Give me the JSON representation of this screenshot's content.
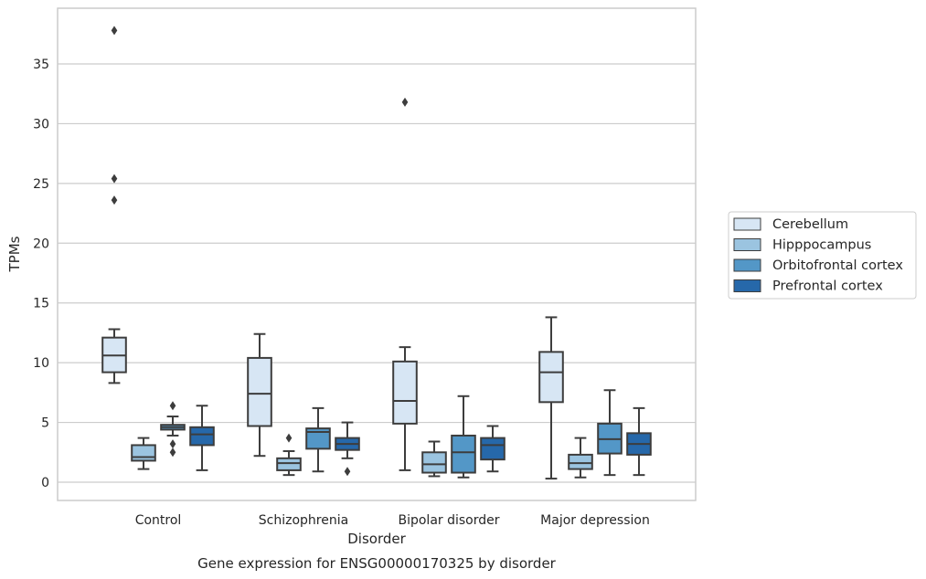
{
  "chart_data": {
    "type": "box",
    "title": "Gene expression for ENSG00000170325 by disorder",
    "xlabel": "Disorder",
    "ylabel": "TPMs",
    "ylim": [
      -1.5,
      39.5
    ],
    "yticks": [
      0,
      5,
      10,
      15,
      20,
      25,
      30,
      35
    ],
    "categories": [
      "Control",
      "Schizophrenia",
      "Bipolar disorder",
      "Major depression"
    ],
    "grid": true,
    "legend_position": "right",
    "series": [
      {
        "name": "Cerebellum",
        "color": "#d7e6f4",
        "boxes": [
          {
            "whislo": 8.3,
            "q1": 9.2,
            "med": 10.6,
            "q3": 12.1,
            "whishi": 12.8,
            "fliers": [
              37.8,
              25.4,
              23.6
            ]
          },
          {
            "whislo": 2.2,
            "q1": 4.7,
            "med": 7.4,
            "q3": 10.4,
            "whishi": 12.4,
            "fliers": []
          },
          {
            "whislo": 1.0,
            "q1": 4.9,
            "med": 6.8,
            "q3": 10.1,
            "whishi": 11.3,
            "fliers": [
              31.8
            ]
          },
          {
            "whislo": 0.3,
            "q1": 6.7,
            "med": 9.2,
            "q3": 10.9,
            "whishi": 13.8,
            "fliers": []
          }
        ]
      },
      {
        "name": "Hipppocampus",
        "color": "#9bc4e0",
        "boxes": [
          {
            "whislo": 1.1,
            "q1": 1.8,
            "med": 2.1,
            "q3": 3.1,
            "whishi": 3.7,
            "fliers": []
          },
          {
            "whislo": 0.6,
            "q1": 1.0,
            "med": 1.6,
            "q3": 2.0,
            "whishi": 2.6,
            "fliers": [
              3.7
            ]
          },
          {
            "whislo": 0.5,
            "q1": 0.8,
            "med": 1.5,
            "q3": 2.5,
            "whishi": 3.4,
            "fliers": []
          },
          {
            "whislo": 0.4,
            "q1": 1.1,
            "med": 1.6,
            "q3": 2.3,
            "whishi": 3.7,
            "fliers": []
          }
        ]
      },
      {
        "name": "Orbitofrontal cortex",
        "color": "#5397c7",
        "boxes": [
          {
            "whislo": 3.9,
            "q1": 4.4,
            "med": 4.6,
            "q3": 4.8,
            "whishi": 5.5,
            "fliers": [
              6.4,
              3.2,
              2.5
            ]
          },
          {
            "whislo": 0.9,
            "q1": 2.8,
            "med": 4.2,
            "q3": 4.5,
            "whishi": 6.2,
            "fliers": []
          },
          {
            "whislo": 0.4,
            "q1": 0.8,
            "med": 2.5,
            "q3": 3.9,
            "whishi": 7.2,
            "fliers": []
          },
          {
            "whislo": 0.6,
            "q1": 2.4,
            "med": 3.6,
            "q3": 4.9,
            "whishi": 7.7,
            "fliers": []
          }
        ]
      },
      {
        "name": "Prefrontal cortex",
        "color": "#2668aa",
        "boxes": [
          {
            "whislo": 1.0,
            "q1": 3.1,
            "med": 4.0,
            "q3": 4.6,
            "whishi": 6.4,
            "fliers": []
          },
          {
            "whislo": 2.0,
            "q1": 2.7,
            "med": 3.2,
            "q3": 3.7,
            "whishi": 5.0,
            "fliers": [
              0.9
            ]
          },
          {
            "whislo": 0.9,
            "q1": 1.9,
            "med": 3.1,
            "q3": 3.7,
            "whishi": 4.7,
            "fliers": []
          },
          {
            "whislo": 0.6,
            "q1": 2.3,
            "med": 3.2,
            "q3": 4.1,
            "whishi": 6.2,
            "fliers": []
          }
        ]
      }
    ]
  }
}
